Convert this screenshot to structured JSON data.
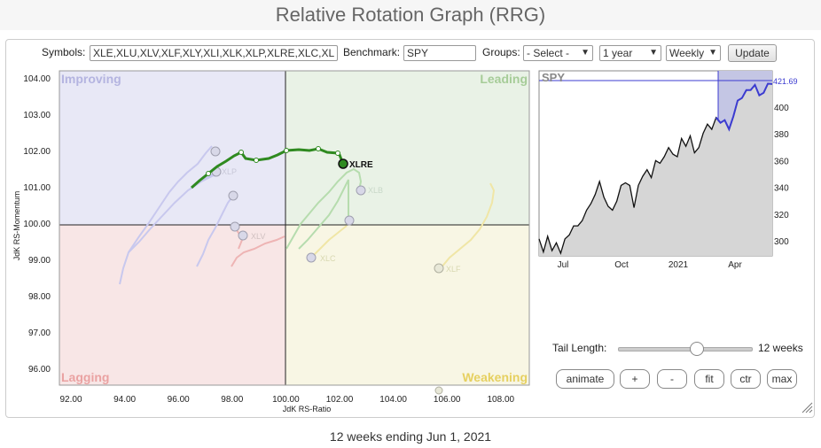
{
  "title": "Relative Rotation Graph (RRG)",
  "controls": {
    "symbols_label": "Symbols:",
    "symbols_value": "XLE,XLU,XLV,XLF,XLY,XLI,XLK,XLP,XLRE,XLC,XL",
    "benchmark_label": "Benchmark:",
    "benchmark_value": "SPY",
    "groups_label": "Groups:",
    "groups_value": "- Select -",
    "period_value": "1 year",
    "interval_value": "Weekly",
    "update_label": "Update"
  },
  "rrg": {
    "quadrants": {
      "improving": "Improving",
      "leading": "Leading",
      "lagging": "Lagging",
      "weakening": "Weakening"
    },
    "xlabel": "JdK RS-Ratio",
    "ylabel": "JdK RS-Momentum",
    "xticks": [
      "92.00",
      "94.00",
      "96.00",
      "98.00",
      "100.00",
      "102.00",
      "104.00",
      "106.00",
      "108.00"
    ],
    "yticks": [
      "104.00",
      "103.00",
      "102.00",
      "101.00",
      "100.00",
      "99.00",
      "98.00",
      "97.00",
      "96.00"
    ],
    "highlight_symbol": "XLRE",
    "ghost_labels": {
      "xlv": "XLV",
      "xlb": "XLB",
      "xlc": "XLC",
      "xlf": "XLF",
      "xlk": "XLK",
      "xlp": "XLP"
    }
  },
  "spy_chart": {
    "symbol": "SPY",
    "last_value": "421.69",
    "yticks": [
      "400",
      "380",
      "360",
      "340",
      "320",
      "300"
    ],
    "xticks": [
      "Jul",
      "Oct",
      "2021",
      "Apr"
    ]
  },
  "tail": {
    "label": "Tail Length:",
    "value": "12 weeks",
    "fraction": 0.58
  },
  "buttons": {
    "animate": "animate",
    "plus": "+",
    "minus": "-",
    "fit": "fit",
    "ctr": "ctr",
    "max": "max"
  },
  "footer": "12 weeks ending Jun 1, 2021",
  "colors": {
    "leading": "#e9f2e6",
    "improving": "#e8e8f6",
    "lagging": "#f8e6e6",
    "weakening": "#f8f6e4",
    "xlre": "#2f8a20",
    "spy_highlight": "#c4c6e4",
    "spy_line_hl": "#3b3bd0"
  }
}
